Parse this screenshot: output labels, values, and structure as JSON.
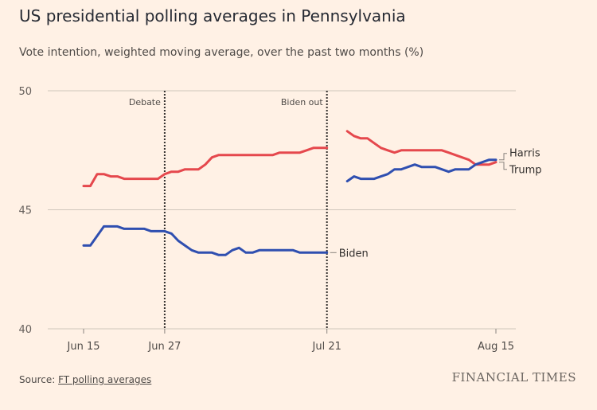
{
  "header": {
    "title": "US presidential polling averages in Pennsylvania",
    "subtitle": "Vote intention, weighted moving average, over the past two months (%)"
  },
  "footer": {
    "source_prefix": "Source: ",
    "source_link": "FT polling averages",
    "brand": "FINANCIAL TIMES"
  },
  "colors": {
    "background": "#fff1e5",
    "red": "#e5484d",
    "blue": "#2f4fb0",
    "grid": "#cfc6bb",
    "marker": "#33302e"
  },
  "chart_data": {
    "type": "line",
    "title": "US presidential polling averages in Pennsylvania",
    "subtitle": "Vote intention, weighted moving average, over the past two months (%)",
    "xlabel": "",
    "ylabel": "",
    "x_ticks": [
      {
        "date": "2024-06-15",
        "label": "Jun 15"
      },
      {
        "date": "2024-06-27",
        "label": "Jun 27"
      },
      {
        "date": "2024-07-21",
        "label": "Jul 21"
      },
      {
        "date": "2024-08-15",
        "label": "Aug 15"
      }
    ],
    "xlim": [
      "2024-06-15",
      "2024-08-15"
    ],
    "ylim": [
      40,
      50
    ],
    "y_ticks": [
      40,
      45,
      50
    ],
    "grid": true,
    "annotations": [
      {
        "date": "2024-06-27",
        "label": "Debate"
      },
      {
        "date": "2024-07-21",
        "label": "Biden out"
      }
    ],
    "series": [
      {
        "name": "Trump",
        "color": "red",
        "points": [
          [
            "2024-06-15",
            46.0
          ],
          [
            "2024-06-16",
            46.0
          ],
          [
            "2024-06-17",
            46.5
          ],
          [
            "2024-06-18",
            46.5
          ],
          [
            "2024-06-19",
            46.4
          ],
          [
            "2024-06-20",
            46.4
          ],
          [
            "2024-06-21",
            46.3
          ],
          [
            "2024-06-22",
            46.3
          ],
          [
            "2024-06-23",
            46.3
          ],
          [
            "2024-06-24",
            46.3
          ],
          [
            "2024-06-25",
            46.3
          ],
          [
            "2024-06-26",
            46.3
          ],
          [
            "2024-06-27",
            46.5
          ],
          [
            "2024-06-28",
            46.6
          ],
          [
            "2024-06-29",
            46.6
          ],
          [
            "2024-06-30",
            46.7
          ],
          [
            "2024-07-01",
            46.7
          ],
          [
            "2024-07-02",
            46.7
          ],
          [
            "2024-07-03",
            46.9
          ],
          [
            "2024-07-04",
            47.2
          ],
          [
            "2024-07-05",
            47.3
          ],
          [
            "2024-07-06",
            47.3
          ],
          [
            "2024-07-07",
            47.3
          ],
          [
            "2024-07-08",
            47.3
          ],
          [
            "2024-07-09",
            47.3
          ],
          [
            "2024-07-10",
            47.3
          ],
          [
            "2024-07-11",
            47.3
          ],
          [
            "2024-07-12",
            47.3
          ],
          [
            "2024-07-13",
            47.3
          ],
          [
            "2024-07-14",
            47.4
          ],
          [
            "2024-07-15",
            47.4
          ],
          [
            "2024-07-16",
            47.4
          ],
          [
            "2024-07-17",
            47.4
          ],
          [
            "2024-07-18",
            47.5
          ],
          [
            "2024-07-19",
            47.6
          ],
          [
            "2024-07-20",
            47.6
          ],
          [
            "2024-07-21",
            47.6
          ],
          [
            "2024-07-24",
            48.3
          ],
          [
            "2024-07-25",
            48.1
          ],
          [
            "2024-07-26",
            48.0
          ],
          [
            "2024-07-27",
            48.0
          ],
          [
            "2024-07-28",
            47.8
          ],
          [
            "2024-07-29",
            47.6
          ],
          [
            "2024-07-30",
            47.5
          ],
          [
            "2024-07-31",
            47.4
          ],
          [
            "2024-08-01",
            47.5
          ],
          [
            "2024-08-02",
            47.5
          ],
          [
            "2024-08-03",
            47.5
          ],
          [
            "2024-08-04",
            47.5
          ],
          [
            "2024-08-05",
            47.5
          ],
          [
            "2024-08-06",
            47.5
          ],
          [
            "2024-08-07",
            47.5
          ],
          [
            "2024-08-08",
            47.4
          ],
          [
            "2024-08-09",
            47.3
          ],
          [
            "2024-08-10",
            47.2
          ],
          [
            "2024-08-11",
            47.1
          ],
          [
            "2024-08-12",
            46.9
          ],
          [
            "2024-08-13",
            46.9
          ],
          [
            "2024-08-14",
            46.9
          ],
          [
            "2024-08-15",
            47.0
          ]
        ]
      },
      {
        "name": "Biden",
        "color": "blue",
        "points": [
          [
            "2024-06-15",
            43.5
          ],
          [
            "2024-06-16",
            43.5
          ],
          [
            "2024-06-17",
            43.9
          ],
          [
            "2024-06-18",
            44.3
          ],
          [
            "2024-06-19",
            44.3
          ],
          [
            "2024-06-20",
            44.3
          ],
          [
            "2024-06-21",
            44.2
          ],
          [
            "2024-06-22",
            44.2
          ],
          [
            "2024-06-23",
            44.2
          ],
          [
            "2024-06-24",
            44.2
          ],
          [
            "2024-06-25",
            44.1
          ],
          [
            "2024-06-26",
            44.1
          ],
          [
            "2024-06-27",
            44.1
          ],
          [
            "2024-06-28",
            44.0
          ],
          [
            "2024-06-29",
            43.7
          ],
          [
            "2024-06-30",
            43.5
          ],
          [
            "2024-07-01",
            43.3
          ],
          [
            "2024-07-02",
            43.2
          ],
          [
            "2024-07-03",
            43.2
          ],
          [
            "2024-07-04",
            43.2
          ],
          [
            "2024-07-05",
            43.1
          ],
          [
            "2024-07-06",
            43.1
          ],
          [
            "2024-07-07",
            43.3
          ],
          [
            "2024-07-08",
            43.4
          ],
          [
            "2024-07-09",
            43.2
          ],
          [
            "2024-07-10",
            43.2
          ],
          [
            "2024-07-11",
            43.3
          ],
          [
            "2024-07-12",
            43.3
          ],
          [
            "2024-07-13",
            43.3
          ],
          [
            "2024-07-14",
            43.3
          ],
          [
            "2024-07-15",
            43.3
          ],
          [
            "2024-07-16",
            43.3
          ],
          [
            "2024-07-17",
            43.2
          ],
          [
            "2024-07-18",
            43.2
          ],
          [
            "2024-07-19",
            43.2
          ],
          [
            "2024-07-20",
            43.2
          ],
          [
            "2024-07-21",
            43.2
          ]
        ]
      },
      {
        "name": "Harris",
        "color": "blue",
        "points": [
          [
            "2024-07-24",
            46.2
          ],
          [
            "2024-07-25",
            46.4
          ],
          [
            "2024-07-26",
            46.3
          ],
          [
            "2024-07-27",
            46.3
          ],
          [
            "2024-07-28",
            46.3
          ],
          [
            "2024-07-29",
            46.4
          ],
          [
            "2024-07-30",
            46.5
          ],
          [
            "2024-07-31",
            46.7
          ],
          [
            "2024-08-01",
            46.7
          ],
          [
            "2024-08-02",
            46.8
          ],
          [
            "2024-08-03",
            46.9
          ],
          [
            "2024-08-04",
            46.8
          ],
          [
            "2024-08-05",
            46.8
          ],
          [
            "2024-08-06",
            46.8
          ],
          [
            "2024-08-07",
            46.7
          ],
          [
            "2024-08-08",
            46.6
          ],
          [
            "2024-08-09",
            46.7
          ],
          [
            "2024-08-10",
            46.7
          ],
          [
            "2024-08-11",
            46.7
          ],
          [
            "2024-08-12",
            46.9
          ],
          [
            "2024-08-13",
            47.0
          ],
          [
            "2024-08-14",
            47.1
          ],
          [
            "2024-08-15",
            47.1
          ]
        ]
      }
    ],
    "labels": [
      {
        "text": "Harris",
        "series": "Harris"
      },
      {
        "text": "Trump",
        "series": "Trump"
      },
      {
        "text": "Biden",
        "series": "Biden"
      }
    ]
  }
}
